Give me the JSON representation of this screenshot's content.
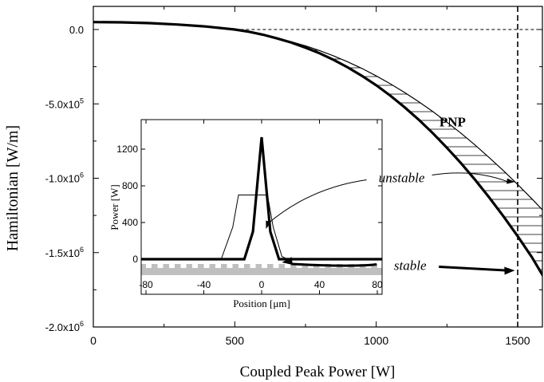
{
  "chart_data": [
    {
      "type": "line",
      "xlabel": "Coupled Peak Power [W]",
      "ylabel": "Hamiltonian [W/m]",
      "xlim": [
        0,
        1600
      ],
      "ylim": [
        -2000000,
        200000
      ],
      "x_ticks": [
        "0",
        "500",
        "1000",
        "1500"
      ],
      "x_tick_values": [
        0,
        500,
        1000,
        1500
      ],
      "y_tick_values": [
        0,
        -500000,
        -1000000,
        -1500000,
        -2000000
      ],
      "y_ticks": [
        {
          "base": "0.0",
          "exp": ""
        },
        {
          "base": "-5.0x10",
          "exp": "5"
        },
        {
          "base": "-1.0x10",
          "exp": "6"
        },
        {
          "base": "-1.5x10",
          "exp": "6"
        },
        {
          "base": "-2.0x10",
          "exp": "6"
        }
      ],
      "grid": false,
      "series": [
        {
          "style": "thick-solid",
          "x": [
            0,
            100,
            200,
            300,
            400,
            500,
            550,
            600,
            650,
            700,
            750,
            800,
            850,
            900,
            950,
            1000,
            1050,
            1100,
            1150,
            1200,
            1250,
            1300,
            1350,
            1400,
            1450,
            1500,
            1550,
            1600
          ],
          "y": [
            50000,
            48000,
            43000,
            33000,
            20000,
            0,
            -15000,
            -35000,
            -60000,
            -88000,
            -122000,
            -160000,
            -205000,
            -255000,
            -312000,
            -375000,
            -445000,
            -522000,
            -606000,
            -697000,
            -795000,
            -900000,
            -1012000,
            -1131000,
            -1257000,
            -1390000,
            -1530000,
            -1690000
          ]
        },
        {
          "style": "thin-solid",
          "x": [
            600,
            650,
            700,
            750,
            800,
            850,
            900,
            950,
            1000,
            1050,
            1100,
            1150,
            1200,
            1250,
            1300,
            1350,
            1400,
            1450,
            1500,
            1550,
            1600
          ],
          "y": [
            -35000,
            -58000,
            -82000,
            -110000,
            -142000,
            -178000,
            -218000,
            -262000,
            -312000,
            -365000,
            -423000,
            -485000,
            -552000,
            -623000,
            -698000,
            -778000,
            -862000,
            -950000,
            -1042000,
            -1138000,
            -1238000
          ]
        },
        {
          "style": "thin-dashed",
          "x": [
            0,
            1600
          ],
          "y": [
            0,
            0
          ]
        },
        {
          "style": "dashed-vertical",
          "x": [
            1500,
            1500
          ],
          "y": [
            200000,
            -2000000
          ]
        }
      ],
      "hatched_region": "between thin and thick curve, x from 600 to 1600",
      "annotations": [
        {
          "text": "PNP",
          "style": "bold",
          "x": 1270,
          "y": -620000
        },
        {
          "text": "unstable",
          "style": "italic",
          "x": 1090,
          "y": -1000000,
          "arrow_to": {
            "x": 1490,
            "y": -1025000
          }
        },
        {
          "text": "stable",
          "style": "italic",
          "x": 1120,
          "y": -1590000,
          "arrow_to": {
            "x": 1490,
            "y": -1620000
          }
        }
      ]
    },
    {
      "type": "line",
      "inset": true,
      "xlabel": "Position [μm]",
      "ylabel": "Power [W]",
      "xlim": [
        -100,
        100
      ],
      "ylim": [
        -230,
        1450
      ],
      "x_ticks": [
        "-80",
        "-40",
        "0",
        "40",
        "80"
      ],
      "x_tick_values": [
        -80,
        -40,
        0,
        40,
        80
      ],
      "y_ticks": [
        "0",
        "400",
        "800",
        "1200"
      ],
      "y_tick_values": [
        0,
        400,
        800,
        1200
      ],
      "grid": false,
      "series": [
        {
          "style": "thick-solid",
          "x": [
            -100,
            -12,
            -6,
            0,
            6,
            12,
            100
          ],
          "y": [
            0,
            0,
            300,
            1330,
            300,
            0,
            0
          ]
        },
        {
          "style": "thin-solid",
          "x": [
            -100,
            -28,
            -20,
            -16,
            4,
            8,
            14,
            18,
            100
          ],
          "y": [
            0,
            0,
            350,
            700,
            700,
            350,
            30,
            0,
            0
          ]
        }
      ],
      "waveguide_pattern": "gray bar with periodic notches below y=0"
    }
  ]
}
